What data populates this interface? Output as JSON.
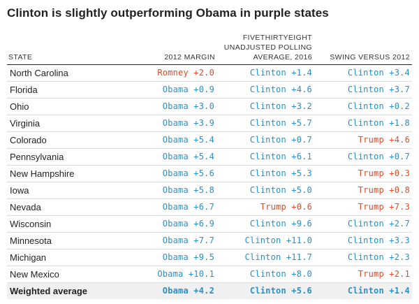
{
  "title": "Clinton is slightly outperforming Obama in purple states",
  "colors": {
    "democrat": "#2a8fc8",
    "republican": "#e04b28",
    "average_row_bg": "#f0f0f0"
  },
  "columns": {
    "state": "STATE",
    "margin_2012": "2012 MARGIN",
    "polling_avg_2016": "FIVETHIRTYEIGHT UNADJUSTED POLLING AVERAGE, 2016",
    "swing": "SWING VERSUS 2012"
  },
  "rows": [
    {
      "state": "North Carolina",
      "margin_2012": "Romney +2.0",
      "m_party": "rep",
      "polling_avg_2016": "Clinton +1.4",
      "p_party": "dem",
      "swing": "Clinton +3.4",
      "s_party": "dem"
    },
    {
      "state": "Florida",
      "margin_2012": "Obama +0.9",
      "m_party": "dem",
      "polling_avg_2016": "Clinton +4.6",
      "p_party": "dem",
      "swing": "Clinton +3.7",
      "s_party": "dem"
    },
    {
      "state": "Ohio",
      "margin_2012": "Obama +3.0",
      "m_party": "dem",
      "polling_avg_2016": "Clinton +3.2",
      "p_party": "dem",
      "swing": "Clinton +0.2",
      "s_party": "dem"
    },
    {
      "state": "Virginia",
      "margin_2012": "Obama +3.9",
      "m_party": "dem",
      "polling_avg_2016": "Clinton +5.7",
      "p_party": "dem",
      "swing": "Clinton +1.8",
      "s_party": "dem"
    },
    {
      "state": "Colorado",
      "margin_2012": "Obama +5.4",
      "m_party": "dem",
      "polling_avg_2016": "Clinton +0.7",
      "p_party": "dem",
      "swing": "Trump +4.6",
      "s_party": "rep"
    },
    {
      "state": "Pennsylvania",
      "margin_2012": "Obama +5.4",
      "m_party": "dem",
      "polling_avg_2016": "Clinton +6.1",
      "p_party": "dem",
      "swing": "Clinton +0.7",
      "s_party": "dem"
    },
    {
      "state": "New Hampshire",
      "margin_2012": "Obama +5.6",
      "m_party": "dem",
      "polling_avg_2016": "Clinton +5.3",
      "p_party": "dem",
      "swing": "Trump +0.3",
      "s_party": "rep"
    },
    {
      "state": "Iowa",
      "margin_2012": "Obama +5.8",
      "m_party": "dem",
      "polling_avg_2016": "Clinton +5.0",
      "p_party": "dem",
      "swing": "Trump +0.8",
      "s_party": "rep"
    },
    {
      "state": "Nevada",
      "margin_2012": "Obama +6.7",
      "m_party": "dem",
      "polling_avg_2016": "Trump +0.6",
      "p_party": "rep",
      "swing": "Trump +7.3",
      "s_party": "rep"
    },
    {
      "state": "Wisconsin",
      "margin_2012": "Obama +6.9",
      "m_party": "dem",
      "polling_avg_2016": "Clinton +9.6",
      "p_party": "dem",
      "swing": "Clinton +2.7",
      "s_party": "dem"
    },
    {
      "state": "Minnesota",
      "margin_2012": "Obama +7.7",
      "m_party": "dem",
      "polling_avg_2016": "Clinton +11.0",
      "p_party": "dem",
      "swing": "Clinton +3.3",
      "s_party": "dem"
    },
    {
      "state": "Michigan",
      "margin_2012": "Obama +9.5",
      "m_party": "dem",
      "polling_avg_2016": "Clinton +11.7",
      "p_party": "dem",
      "swing": "Clinton +2.3",
      "s_party": "dem"
    },
    {
      "state": "New Mexico",
      "margin_2012": "Obama +10.1",
      "m_party": "dem",
      "polling_avg_2016": "Clinton +8.0",
      "p_party": "dem",
      "swing": "Trump +2.1",
      "s_party": "rep"
    }
  ],
  "average_row": {
    "state": "Weighted average",
    "margin_2012": "Obama +4.2",
    "m_party": "dem",
    "polling_avg_2016": "Clinton +5.6",
    "p_party": "dem",
    "swing": "Clinton +1.4",
    "s_party": "dem"
  }
}
